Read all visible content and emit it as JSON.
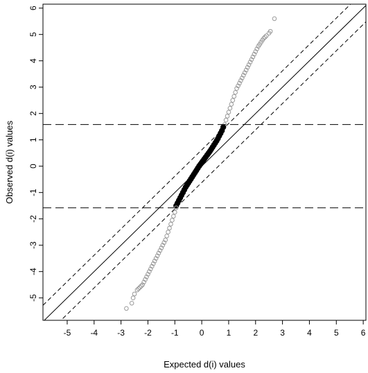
{
  "chart_data": {
    "type": "scatter",
    "title": "",
    "xlabel": "Expected d(i) values",
    "ylabel": "Observed d(i) values",
    "xlim": [
      -5.9,
      6.1
    ],
    "ylim": [
      -5.85,
      6.15
    ],
    "x_ticks": [
      -5,
      -4,
      -3,
      -2,
      -1,
      0,
      1,
      2,
      3,
      4,
      5,
      6
    ],
    "y_ticks": [
      -5,
      -4,
      -3,
      -2,
      -1,
      0,
      1,
      2,
      3,
      4,
      5,
      6
    ],
    "grid": false,
    "legend": "none",
    "colors": {
      "significant": "#999999",
      "non_significant": "#000000"
    },
    "reference_lines": {
      "identity": {
        "slope": 1,
        "intercept": 0,
        "style": "solid"
      },
      "delta_band": {
        "offset": 0.62,
        "style": "dashed"
      },
      "cutoffs": {
        "y": [
          1.58,
          -1.58
        ],
        "style": "long-dashed"
      }
    },
    "series": [
      {
        "group": "significant-upper",
        "x": [
          0.85,
          0.9,
          0.95,
          1.0,
          1.05,
          1.1,
          1.15,
          1.2,
          1.25,
          1.3,
          1.35,
          1.4,
          1.45,
          1.5,
          1.55,
          1.6,
          1.65,
          1.7,
          1.75,
          1.8,
          1.85,
          1.9,
          1.95,
          2.0,
          2.05,
          2.1,
          2.15,
          2.2,
          2.25,
          2.3,
          2.35,
          2.4,
          2.5,
          2.55,
          2.7
        ],
        "y": [
          1.58,
          1.75,
          1.9,
          2.05,
          2.2,
          2.35,
          2.5,
          2.65,
          2.8,
          2.95,
          3.05,
          3.15,
          3.25,
          3.35,
          3.45,
          3.55,
          3.65,
          3.75,
          3.85,
          3.95,
          4.05,
          4.15,
          4.25,
          4.35,
          4.45,
          4.55,
          4.62,
          4.7,
          4.78,
          4.85,
          4.9,
          4.95,
          5.05,
          5.12,
          5.6
        ]
      },
      {
        "group": "non-significant",
        "x": [
          -0.95,
          -0.9,
          -0.85,
          -0.8,
          -0.75,
          -0.7,
          -0.65,
          -0.6,
          -0.55,
          -0.5,
          -0.45,
          -0.4,
          -0.35,
          -0.3,
          -0.25,
          -0.2,
          -0.15,
          -0.1,
          -0.05,
          0.0,
          0.05,
          0.1,
          0.15,
          0.2,
          0.25,
          0.3,
          0.35,
          0.4,
          0.45,
          0.5,
          0.55,
          0.6,
          0.65,
          0.7,
          0.75,
          0.8
        ],
        "y": [
          -1.5,
          -1.4,
          -1.3,
          -1.2,
          -1.1,
          -1.0,
          -0.9,
          -0.8,
          -0.72,
          -0.64,
          -0.56,
          -0.48,
          -0.4,
          -0.32,
          -0.24,
          -0.16,
          -0.08,
          0.0,
          0.07,
          0.14,
          0.21,
          0.28,
          0.35,
          0.42,
          0.49,
          0.56,
          0.64,
          0.72,
          0.8,
          0.88,
          0.96,
          1.05,
          1.15,
          1.25,
          1.35,
          1.48
        ]
      },
      {
        "group": "significant-lower",
        "x": [
          -0.95,
          -1.0,
          -1.05,
          -1.1,
          -1.15,
          -1.2,
          -1.25,
          -1.3,
          -1.35,
          -1.4,
          -1.45,
          -1.5,
          -1.55,
          -1.6,
          -1.65,
          -1.7,
          -1.75,
          -1.8,
          -1.85,
          -1.9,
          -1.95,
          -2.0,
          -2.05,
          -2.1,
          -2.15,
          -2.2,
          -2.25,
          -2.3,
          -2.35,
          -2.4,
          -2.5,
          -2.55,
          -2.6,
          -2.8
        ],
        "y": [
          -1.58,
          -1.75,
          -1.9,
          -2.05,
          -2.2,
          -2.35,
          -2.5,
          -2.65,
          -2.8,
          -2.9,
          -3.0,
          -3.1,
          -3.2,
          -3.3,
          -3.4,
          -3.5,
          -3.6,
          -3.7,
          -3.8,
          -3.9,
          -4.0,
          -4.1,
          -4.2,
          -4.3,
          -4.4,
          -4.5,
          -4.55,
          -4.6,
          -4.65,
          -4.7,
          -4.85,
          -5.0,
          -5.2,
          -5.4
        ]
      }
    ]
  }
}
